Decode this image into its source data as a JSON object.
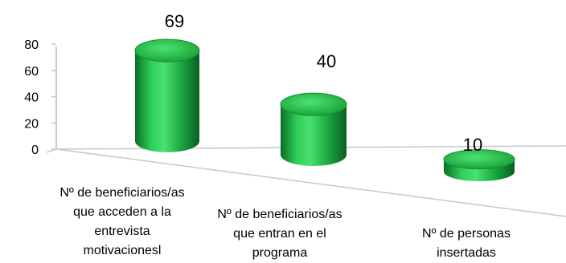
{
  "chart_data": {
    "type": "bar",
    "style": "3d-cylinder",
    "categories": [
      "Nº de beneficiarios/as que acceden a la entrevista motivacionesl",
      "Nº de beneficiarios/as que entran en el programa",
      "Nº de personas insertadas"
    ],
    "values": [
      69,
      40,
      10
    ],
    "data_labels": [
      "69",
      "40",
      "10"
    ],
    "ylim": [
      0,
      80
    ],
    "yticks": [
      "0",
      "20",
      "40",
      "60",
      "80"
    ],
    "grid": false,
    "legend": "none",
    "bar_color": "#1fa844"
  }
}
